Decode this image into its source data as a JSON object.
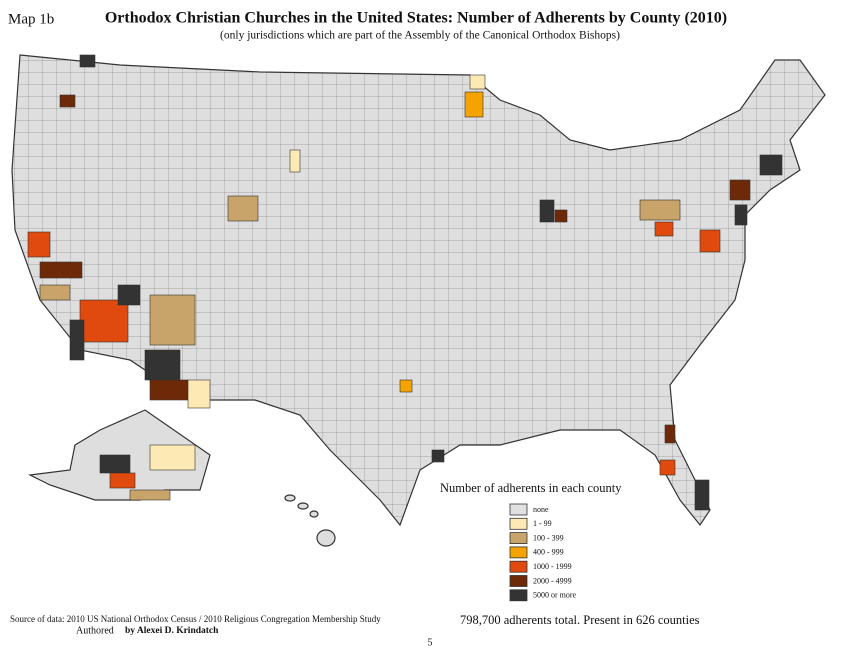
{
  "header": {
    "map_label": "Map 1b",
    "title": "Orthodox Christian Churches in the United States: Number of Adherents by County (2010)",
    "subtitle": "(only jurisdictions which are part of the Assembly of the Canonical Orthodox Bishops)"
  },
  "legend": {
    "title": "Number of adherents in each county",
    "items": [
      {
        "label": "none",
        "color": "#e0e0e0"
      },
      {
        "label": "1 - 99",
        "color": "#fde9b4"
      },
      {
        "label": "100 - 399",
        "color": "#c8a46a"
      },
      {
        "label": "400 - 999",
        "color": "#f5a300"
      },
      {
        "label": "1000 - 1999",
        "color": "#e04a0e"
      },
      {
        "label": "2000 - 4999",
        "color": "#6e2a08"
      },
      {
        "label": "5000 or more",
        "color": "#333333"
      }
    ]
  },
  "footer": {
    "source": "Source of data: 2010 US National Orthodox Census / 2010 Religious Congregation Membership Study",
    "author_prefix": "Authored",
    "author": "by Alexei D. Krindatch",
    "total": "798,700 adherents total. Present in 626 counties",
    "page": "5"
  }
}
